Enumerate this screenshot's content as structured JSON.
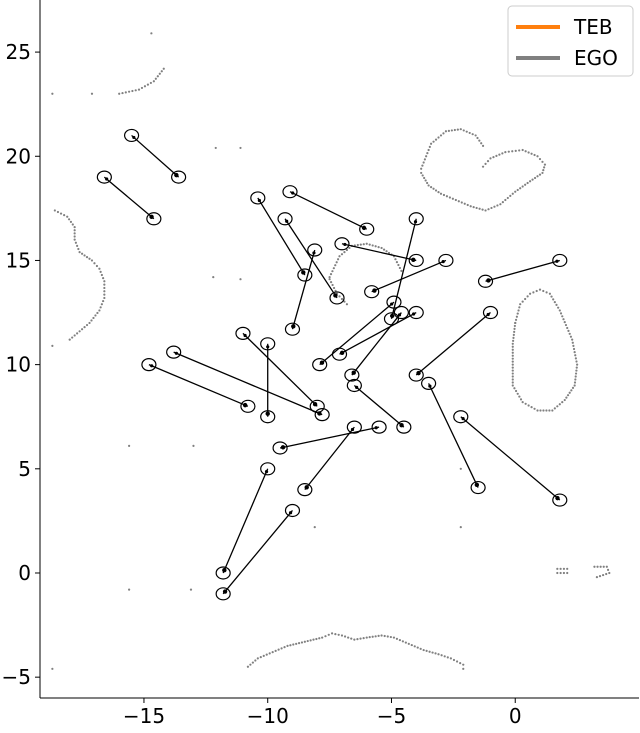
{
  "chart_data": {
    "type": "scatter",
    "title": "",
    "xlabel": "",
    "ylabel": "",
    "xlim": [
      -19.2,
      5.0
    ],
    "ylim": [
      -6.0,
      27.5
    ],
    "xticks": [
      -15,
      -10,
      -5,
      0
    ],
    "yticks": [
      -5,
      0,
      5,
      10,
      15,
      20,
      25
    ],
    "xtick_labels": [
      "−15",
      "−10",
      "−5",
      "0"
    ],
    "ytick_labels": [
      "−5",
      "0",
      "5",
      "10",
      "15",
      "20",
      "25"
    ],
    "grid": false,
    "legend": {
      "position": "top-right",
      "entries": [
        {
          "name": "TEB",
          "color": "#ff7f0e"
        },
        {
          "name": "EGO",
          "color": "#808080"
        }
      ]
    },
    "series": [
      {
        "name": "TEB",
        "color": "#ff7f0e",
        "points": []
      },
      {
        "name": "EGO",
        "color": "#808080",
        "points": []
      }
    ],
    "obstacle_polylines": [
      [
        [
          -16.0,
          23.0
        ],
        [
          -15.2,
          23.2
        ],
        [
          -14.6,
          23.6
        ],
        [
          -14.2,
          24.2
        ]
      ],
      [
        [
          -18.6,
          17.4
        ],
        [
          -18.1,
          17.1
        ],
        [
          -17.8,
          16.6
        ],
        [
          -17.8,
          16.0
        ],
        [
          -17.6,
          15.4
        ],
        [
          -17.1,
          15.0
        ],
        [
          -16.8,
          14.6
        ],
        [
          -16.6,
          14.0
        ],
        [
          -16.6,
          13.2
        ],
        [
          -16.8,
          12.6
        ],
        [
          -17.2,
          12.0
        ],
        [
          -17.6,
          11.6
        ],
        [
          -18.0,
          11.2
        ]
      ],
      [
        [
          -3.8,
          19.4
        ],
        [
          -3.4,
          20.6
        ],
        [
          -2.8,
          21.2
        ],
        [
          -2.2,
          21.3
        ],
        [
          -1.6,
          21.0
        ],
        [
          -1.3,
          20.5
        ]
      ],
      [
        [
          -3.8,
          19.2
        ],
        [
          -3.5,
          18.6
        ],
        [
          -3.0,
          18.2
        ],
        [
          -2.4,
          17.9
        ],
        [
          -1.8,
          17.6
        ],
        [
          -1.2,
          17.4
        ],
        [
          -0.6,
          17.7
        ],
        [
          0.0,
          18.3
        ],
        [
          0.6,
          18.8
        ],
        [
          1.1,
          19.2
        ],
        [
          1.2,
          19.6
        ],
        [
          0.9,
          20.0
        ],
        [
          0.3,
          20.3
        ],
        [
          -0.4,
          20.2
        ],
        [
          -1.0,
          19.9
        ],
        [
          -1.3,
          19.5
        ]
      ],
      [
        [
          -7.5,
          14.2
        ],
        [
          -7.1,
          15.2
        ],
        [
          -6.6,
          15.7
        ],
        [
          -6.0,
          15.8
        ],
        [
          -5.4,
          15.6
        ],
        [
          -4.9,
          15.2
        ],
        [
          -4.6,
          14.5
        ]
      ],
      [
        [
          -7.5,
          14.1
        ],
        [
          -7.2,
          13.4
        ],
        [
          -6.8,
          12.9
        ]
      ],
      [
        [
          0.0,
          12.0
        ],
        [
          0.2,
          12.9
        ],
        [
          0.6,
          13.4
        ],
        [
          1.0,
          13.6
        ],
        [
          1.4,
          13.4
        ],
        [
          1.8,
          12.6
        ],
        [
          2.3,
          11.2
        ],
        [
          2.5,
          10.0
        ],
        [
          2.4,
          9.0
        ],
        [
          2.0,
          8.3
        ],
        [
          1.5,
          7.8
        ],
        [
          0.9,
          7.8
        ],
        [
          0.3,
          8.2
        ],
        [
          -0.1,
          9.0
        ],
        [
          -0.1,
          10.0
        ],
        [
          -0.1,
          11.0
        ],
        [
          0.0,
          12.0
        ]
      ],
      [
        [
          1.7,
          0.2
        ],
        [
          2.1,
          0.2
        ],
        [
          2.1,
          0.0
        ],
        [
          1.7,
          0.0
        ]
      ],
      [
        [
          3.2,
          0.3
        ],
        [
          3.7,
          0.3
        ],
        [
          3.8,
          0.0
        ],
        [
          3.3,
          -0.2
        ]
      ],
      [
        [
          -10.8,
          -4.5
        ],
        [
          -10.4,
          -4.1
        ],
        [
          -9.8,
          -3.8
        ],
        [
          -9.2,
          -3.5
        ],
        [
          -8.5,
          -3.3
        ],
        [
          -7.8,
          -3.1
        ],
        [
          -7.4,
          -2.9
        ],
        [
          -7.0,
          -3.0
        ],
        [
          -6.5,
          -3.2
        ],
        [
          -6.0,
          -3.1
        ],
        [
          -5.4,
          -3.0
        ],
        [
          -4.9,
          -3.1
        ],
        [
          -4.3,
          -3.4
        ],
        [
          -3.7,
          -3.7
        ],
        [
          -3.1,
          -3.9
        ],
        [
          -2.6,
          -4.1
        ],
        [
          -2.1,
          -4.4
        ],
        [
          -2.1,
          -4.6
        ]
      ]
    ],
    "isolated_obstacle_points": [
      [
        -18.7,
        23.0
      ],
      [
        -17.1,
        23.0
      ],
      [
        -14.7,
        25.9
      ],
      [
        -12.1,
        20.4
      ],
      [
        -11.1,
        20.4
      ],
      [
        -12.2,
        14.2
      ],
      [
        -11.1,
        14.1
      ],
      [
        -18.7,
        10.9
      ],
      [
        -15.6,
        6.1
      ],
      [
        -13.0,
        6.1
      ],
      [
        -15.6,
        -0.8
      ],
      [
        -13.1,
        -0.8
      ],
      [
        -8.1,
        2.2
      ],
      [
        -2.2,
        5.0
      ],
      [
        -2.2,
        2.2
      ],
      [
        -18.7,
        -4.6
      ]
    ],
    "trajectories": [
      {
        "from": [
          -15.5,
          21.0
        ],
        "to": [
          -13.6,
          19.0
        ]
      },
      {
        "from": [
          -16.6,
          19.0
        ],
        "to": [
          -14.6,
          17.0
        ]
      },
      {
        "from": [
          -10.4,
          18.0
        ],
        "to": [
          -8.5,
          14.3
        ]
      },
      {
        "from": [
          -9.1,
          18.3
        ],
        "to": [
          -6.0,
          16.5
        ]
      },
      {
        "from": [
          -9.3,
          17.0
        ],
        "to": [
          -7.2,
          13.2
        ]
      },
      {
        "from": [
          -8.1,
          15.5
        ],
        "to": [
          -9.0,
          11.7
        ]
      },
      {
        "from": [
          -7.0,
          15.8
        ],
        "to": [
          -4.0,
          15.0
        ]
      },
      {
        "from": [
          -4.0,
          17.0
        ],
        "to": [
          -5.0,
          12.2
        ]
      },
      {
        "from": [
          -2.8,
          15.0
        ],
        "to": [
          -5.8,
          13.5
        ]
      },
      {
        "from": [
          1.8,
          15.0
        ],
        "to": [
          -1.2,
          14.0
        ]
      },
      {
        "from": [
          -4.9,
          13.0
        ],
        "to": [
          -7.9,
          10.0
        ]
      },
      {
        "from": [
          -4.0,
          12.5
        ],
        "to": [
          -7.1,
          10.5
        ]
      },
      {
        "from": [
          -4.6,
          12.5
        ],
        "to": [
          -6.6,
          9.5
        ]
      },
      {
        "from": [
          -1.0,
          12.5
        ],
        "to": [
          -4.0,
          9.5
        ]
      },
      {
        "from": [
          -11.0,
          11.5
        ],
        "to": [
          -8.0,
          8.0
        ]
      },
      {
        "from": [
          -10.0,
          11.0
        ],
        "to": [
          -10.0,
          7.5
        ]
      },
      {
        "from": [
          -13.8,
          10.6
        ],
        "to": [
          -7.8,
          7.6
        ]
      },
      {
        "from": [
          -14.8,
          10.0
        ],
        "to": [
          -10.8,
          8.0
        ]
      },
      {
        "from": [
          -6.5,
          9.0
        ],
        "to": [
          -4.5,
          7.0
        ]
      },
      {
        "from": [
          -3.5,
          9.1
        ],
        "to": [
          -1.5,
          4.1
        ]
      },
      {
        "from": [
          -2.2,
          7.5
        ],
        "to": [
          1.8,
          3.5
        ]
      },
      {
        "from": [
          -5.5,
          7.0
        ],
        "to": [
          -9.5,
          6.0
        ]
      },
      {
        "from": [
          -6.5,
          7.0
        ],
        "to": [
          -8.5,
          4.0
        ]
      },
      {
        "from": [
          -10.0,
          5.0
        ],
        "to": [
          -11.8,
          0.0
        ]
      },
      {
        "from": [
          -9.0,
          3.0
        ],
        "to": [
          -11.8,
          -1.0
        ]
      }
    ]
  }
}
